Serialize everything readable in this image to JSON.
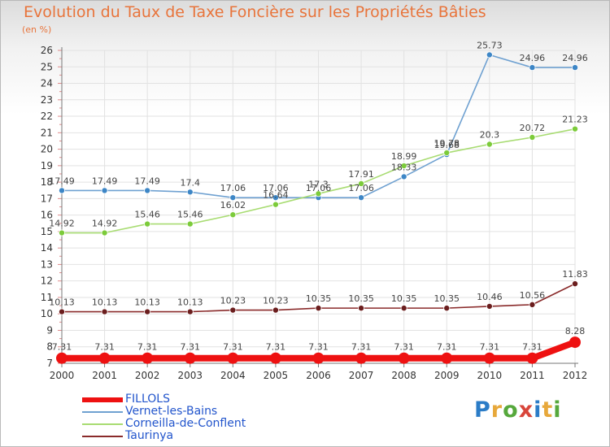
{
  "title": "Evolution du Taux de Taxe Foncière sur les Propriétés Bâties",
  "unit_label": "(en %)",
  "logo_text": "Proxiti",
  "colors": {
    "title": "#e8743b",
    "grid": "#e2e2e2",
    "legend_text": "#2255cc"
  },
  "chart_data": {
    "type": "line",
    "x": [
      2000,
      2001,
      2002,
      2003,
      2004,
      2005,
      2006,
      2007,
      2008,
      2009,
      2010,
      2011,
      2012
    ],
    "ylim": [
      7,
      26
    ],
    "yticks": [
      7,
      8,
      9,
      10,
      11,
      12,
      13,
      14,
      15,
      16,
      17,
      18,
      19,
      20,
      21,
      22,
      23,
      24,
      25,
      26
    ],
    "grid": true,
    "legend_position": "bottom-left",
    "series": [
      {
        "name": "FILLOLS",
        "color": "#ee1111",
        "marker": "#ee1111",
        "bold": true,
        "values": [
          7.31,
          7.31,
          7.31,
          7.31,
          7.31,
          7.31,
          7.31,
          7.31,
          7.31,
          7.31,
          7.31,
          7.31,
          8.28
        ],
        "labels": [
          "7.31",
          "7.31",
          "7.31",
          "7.31",
          "7.31",
          "7.31",
          "7.31",
          "7.31",
          "7.31",
          "7.31",
          "7.31",
          "7.31",
          "8.28"
        ]
      },
      {
        "name": "Vernet-les-Bains",
        "color": "#6fa1d1",
        "marker": "#3d86c6",
        "bold": false,
        "values": [
          17.49,
          17.49,
          17.49,
          17.4,
          17.06,
          17.06,
          17.06,
          17.06,
          18.33,
          19.68,
          25.73,
          24.96,
          24.96
        ],
        "labels": [
          "17.49",
          "17.49",
          "17.49",
          "17.4",
          "17.06",
          "17.06",
          "17.06",
          "17.06",
          "18.33",
          "19.68",
          "25.73",
          "24.96",
          "24.96"
        ]
      },
      {
        "name": "Corneilla-de-Conflent",
        "color": "#a8dc72",
        "marker": "#7ccb3a",
        "bold": false,
        "values": [
          14.92,
          14.92,
          15.46,
          15.46,
          16.02,
          16.64,
          17.3,
          17.91,
          18.99,
          19.78,
          20.3,
          20.72,
          21.23
        ],
        "labels": [
          "14.92",
          "14.92",
          "15.46",
          "15.46",
          "16.02",
          "16.64",
          "17.3",
          "17.91",
          "18.99",
          "19.78",
          "20.3",
          "20.72",
          "21.23"
        ]
      },
      {
        "name": "Taurinya",
        "color": "#8a2b2b",
        "marker": "#6b1e1e",
        "bold": false,
        "values": [
          10.13,
          10.13,
          10.13,
          10.13,
          10.23,
          10.23,
          10.35,
          10.35,
          10.35,
          10.35,
          10.46,
          10.56,
          11.83
        ],
        "labels": [
          "10.13",
          "10.13",
          "10.13",
          "10.13",
          "10.23",
          "10.23",
          "10.35",
          "10.35",
          "10.35",
          "10.35",
          "10.46",
          "10.56",
          "11.83"
        ]
      }
    ]
  }
}
